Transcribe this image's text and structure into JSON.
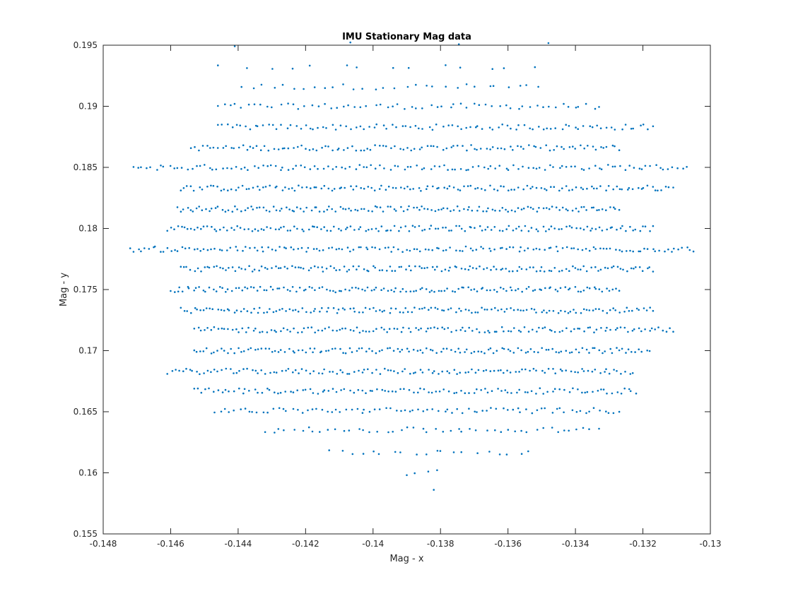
{
  "chart_data": {
    "type": "scatter",
    "title": "IMU Stationary Mag data",
    "xlabel": "Mag - x",
    "ylabel": "Mag - y",
    "xlim": [
      -0.148,
      -0.13
    ],
    "ylim": [
      0.155,
      0.195
    ],
    "xticks": [
      -0.148,
      -0.146,
      -0.144,
      -0.142,
      -0.14,
      -0.138,
      -0.136,
      -0.134,
      -0.132,
      -0.13
    ],
    "yticks": [
      0.155,
      0.16,
      0.165,
      0.17,
      0.175,
      0.18,
      0.185,
      0.19,
      0.195
    ],
    "xtick_labels": [
      "-0.148",
      "-0.146",
      "-0.144",
      "-0.142",
      "-0.14",
      "-0.138",
      "-0.136",
      "-0.134",
      "-0.132",
      "-0.13"
    ],
    "ytick_labels": [
      "0.155",
      "0.16",
      "0.165",
      "0.17",
      "0.175",
      "0.18",
      "0.185",
      "0.19",
      "0.195"
    ],
    "grid": false,
    "marker": "point",
    "marker_color": "#0072BD",
    "rows": [
      {
        "y": 0.195,
        "xmin": -0.1441,
        "xmax": -0.1348,
        "n": 4
      },
      {
        "y": 0.1932,
        "xmin": -0.1446,
        "xmax": -0.1352,
        "n": 14
      },
      {
        "y": 0.1916,
        "xmin": -0.1439,
        "xmax": -0.1351,
        "n": 30
      },
      {
        "y": 0.19,
        "xmin": -0.1446,
        "xmax": -0.1333,
        "n": 62
      },
      {
        "y": 0.1883,
        "xmin": -0.1446,
        "xmax": -0.1317,
        "n": 96
      },
      {
        "y": 0.1866,
        "xmin": -0.1454,
        "xmax": -0.1327,
        "n": 110
      },
      {
        "y": 0.185,
        "xmin": -0.1471,
        "xmax": -0.1307,
        "n": 126
      },
      {
        "y": 0.1833,
        "xmin": -0.1457,
        "xmax": -0.1311,
        "n": 138
      },
      {
        "y": 0.1816,
        "xmin": -0.1458,
        "xmax": -0.1327,
        "n": 140
      },
      {
        "y": 0.18,
        "xmin": -0.1461,
        "xmax": -0.1317,
        "n": 146
      },
      {
        "y": 0.1783,
        "xmin": -0.1472,
        "xmax": -0.1305,
        "n": 152
      },
      {
        "y": 0.1767,
        "xmin": -0.1457,
        "xmax": -0.1317,
        "n": 146
      },
      {
        "y": 0.175,
        "xmin": -0.146,
        "xmax": -0.1327,
        "n": 140
      },
      {
        "y": 0.1733,
        "xmin": -0.1457,
        "xmax": -0.1317,
        "n": 144
      },
      {
        "y": 0.1717,
        "xmin": -0.1453,
        "xmax": -0.1311,
        "n": 140
      },
      {
        "y": 0.17,
        "xmin": -0.1453,
        "xmax": -0.1318,
        "n": 136
      },
      {
        "y": 0.1683,
        "xmin": -0.1461,
        "xmax": -0.1323,
        "n": 128
      },
      {
        "y": 0.1667,
        "xmin": -0.1453,
        "xmax": -0.1322,
        "n": 112
      },
      {
        "y": 0.1651,
        "xmin": -0.1447,
        "xmax": -0.1327,
        "n": 84
      },
      {
        "y": 0.1635,
        "xmin": -0.1432,
        "xmax": -0.1333,
        "n": 48
      },
      {
        "y": 0.1617,
        "xmin": -0.1413,
        "xmax": -0.1354,
        "n": 20
      },
      {
        "y": 0.16,
        "xmin": -0.139,
        "xmax": -0.1381,
        "n": 4
      },
      {
        "y": 0.1585,
        "xmin": -0.1382,
        "xmax": -0.1382,
        "n": 1
      }
    ]
  }
}
